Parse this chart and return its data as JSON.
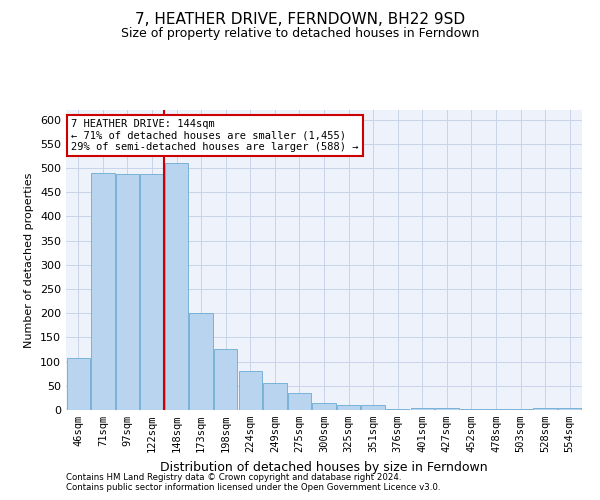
{
  "title": "7, HEATHER DRIVE, FERNDOWN, BH22 9SD",
  "subtitle": "Size of property relative to detached houses in Ferndown",
  "xlabel": "Distribution of detached houses by size in Ferndown",
  "ylabel": "Number of detached properties",
  "categories": [
    "46sqm",
    "71sqm",
    "97sqm",
    "122sqm",
    "148sqm",
    "173sqm",
    "198sqm",
    "224sqm",
    "249sqm",
    "275sqm",
    "300sqm",
    "325sqm",
    "351sqm",
    "376sqm",
    "401sqm",
    "427sqm",
    "452sqm",
    "478sqm",
    "503sqm",
    "528sqm",
    "554sqm"
  ],
  "values": [
    107,
    490,
    487,
    487,
    510,
    200,
    127,
    80,
    55,
    35,
    15,
    10,
    10,
    2,
    5,
    5,
    2,
    2,
    2,
    5,
    5
  ],
  "bar_color": "#b8d4ee",
  "bar_edge_color": "#6aaad4",
  "red_line_index": 4,
  "annotation_text": "7 HEATHER DRIVE: 144sqm\n← 71% of detached houses are smaller (1,455)\n29% of semi-detached houses are larger (588) →",
  "annotation_box_color": "#ffffff",
  "annotation_box_edge": "#cc0000",
  "footer1": "Contains HM Land Registry data © Crown copyright and database right 2024.",
  "footer2": "Contains public sector information licensed under the Open Government Licence v3.0.",
  "ylim": [
    0,
    620
  ],
  "yticks": [
    0,
    50,
    100,
    150,
    200,
    250,
    300,
    350,
    400,
    450,
    500,
    550,
    600
  ],
  "background_color": "#eef2fa",
  "grid_color": "#c8d4e8",
  "title_fontsize": 11,
  "subtitle_fontsize": 9,
  "ylabel_fontsize": 8,
  "xlabel_fontsize": 9,
  "tick_fontsize": 7.5
}
